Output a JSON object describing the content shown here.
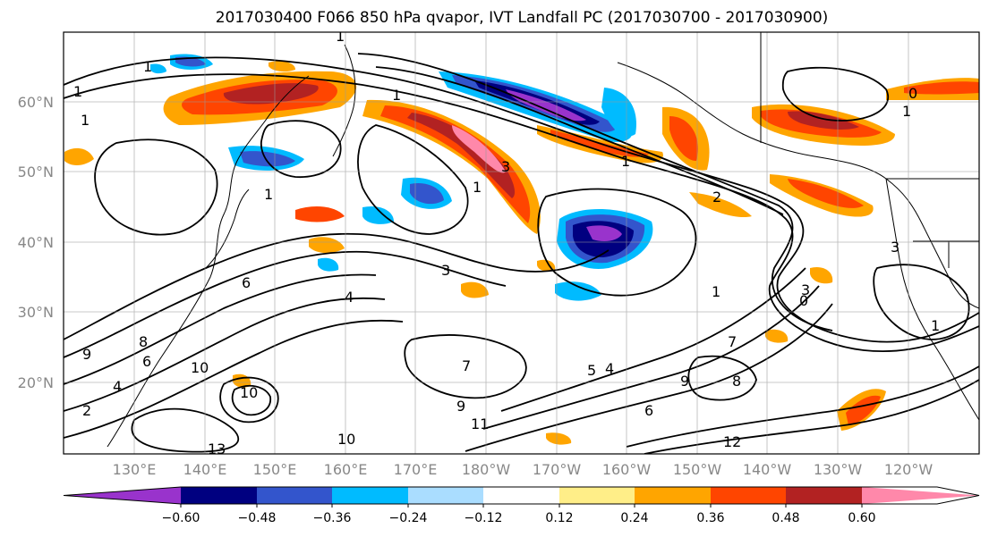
{
  "title": "2017030400 F066 850 hPa qvapor, IVT Landfall PC (2017030700 - 2017030900)",
  "map": {
    "lat_ticks": [
      "60°N",
      "50°N",
      "40°N",
      "30°N",
      "20°N"
    ],
    "lon_ticks": [
      "130°E",
      "140°E",
      "150°E",
      "160°E",
      "170°E",
      "180°W",
      "170°W",
      "160°W",
      "150°W",
      "140°W",
      "130°W",
      "120°W"
    ],
    "contour_labels": [
      "1",
      "1",
      "1",
      "1",
      "1",
      "1",
      "1",
      "1",
      "1",
      "1",
      "1",
      "2",
      "2",
      "3",
      "3",
      "3",
      "3",
      "4",
      "4",
      "4",
      "5",
      "6",
      "6",
      "6",
      "7",
      "7",
      "8",
      "8",
      "9",
      "9",
      "9",
      "10",
      "10",
      "10",
      "11",
      "12",
      "13",
      "0",
      "0"
    ]
  },
  "colorbar": {
    "colors": [
      "#9933cc",
      "#000080",
      "#3355cc",
      "#00bbff",
      "#aaddff",
      "#ffffff",
      "#ffee88",
      "#ffa500",
      "#ff4500",
      "#b22222",
      "#ff88aa"
    ],
    "tick_labels": [
      "−0.60",
      "−0.48",
      "−0.36",
      "−0.24",
      "−0.12",
      "0.12",
      "0.24",
      "0.36",
      "0.48",
      "0.60"
    ]
  }
}
